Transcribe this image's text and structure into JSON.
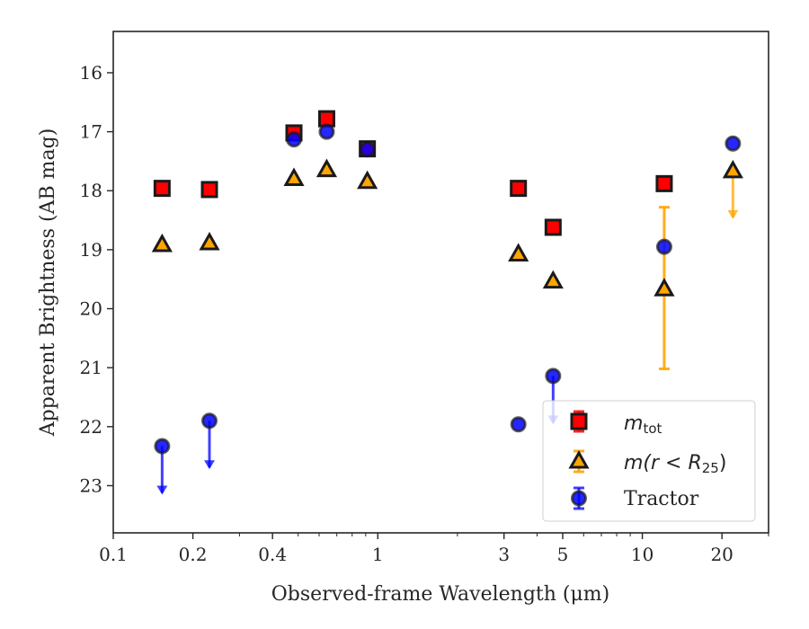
{
  "chart_data": {
    "type": "scatter",
    "title": "",
    "xlabel": "Observed-frame Wavelength (μm)",
    "ylabel": "Apparent Brightness (AB mag)",
    "xscale": "log",
    "xlim": [
      0.1,
      30
    ],
    "ylim": [
      23.8,
      15.3
    ],
    "y_inverted": true,
    "grid": false,
    "legend_position": "lower-right",
    "x_ticks": [
      0.1,
      0.2,
      0.4,
      1,
      3,
      5,
      10,
      20
    ],
    "x_tick_labels": [
      "0.1",
      "0.2",
      "0.4",
      "1",
      "3",
      "5",
      "10",
      "20"
    ],
    "y_ticks": [
      16,
      17,
      18,
      19,
      20,
      21,
      22,
      23
    ],
    "y_tick_labels": [
      "16",
      "17",
      "18",
      "19",
      "20",
      "21",
      "22",
      "23"
    ],
    "legend": {
      "m_tot": {
        "base": "m",
        "sub": "tot"
      },
      "m_r25": {
        "prefix": "m(r < R",
        "sub": "25",
        "suffix": ")"
      },
      "tractor": "Tractor"
    },
    "series": [
      {
        "name": "m_tot",
        "marker": "square",
        "color": "#ff0000",
        "points": [
          {
            "x": 0.153,
            "y": 17.96
          },
          {
            "x": 0.231,
            "y": 17.98
          },
          {
            "x": 0.482,
            "y": 17.02
          },
          {
            "x": 0.641,
            "y": 16.78
          },
          {
            "x": 0.913,
            "y": 17.29
          },
          {
            "x": 3.4,
            "y": 17.96
          },
          {
            "x": 4.6,
            "y": 18.62
          },
          {
            "x": 12.1,
            "y": 17.88
          }
        ]
      },
      {
        "name": "m(r < R25)",
        "marker": "triangle",
        "color": "#ffa500",
        "points": [
          {
            "x": 0.153,
            "y": 18.91
          },
          {
            "x": 0.231,
            "y": 18.88
          },
          {
            "x": 0.482,
            "y": 17.79
          },
          {
            "x": 0.641,
            "y": 17.64
          },
          {
            "x": 0.913,
            "y": 17.84
          },
          {
            "x": 3.4,
            "y": 19.07
          },
          {
            "x": 4.6,
            "y": 19.53
          },
          {
            "x": 12.1,
            "y": 19.66,
            "err_low": 18.28,
            "err_high": 21.02
          },
          {
            "x": 22.0,
            "y": 17.66,
            "upper_limit": true
          }
        ]
      },
      {
        "name": "Tractor",
        "marker": "circle",
        "color": "#0000ff",
        "points": [
          {
            "x": 0.153,
            "y": 22.33,
            "upper_limit": true
          },
          {
            "x": 0.231,
            "y": 21.9,
            "upper_limit": true
          },
          {
            "x": 0.482,
            "y": 17.13
          },
          {
            "x": 0.641,
            "y": 17.0
          },
          {
            "x": 0.913,
            "y": 17.3
          },
          {
            "x": 3.4,
            "y": 21.96
          },
          {
            "x": 4.6,
            "y": 21.14,
            "upper_limit": true
          },
          {
            "x": 12.1,
            "y": 18.95
          },
          {
            "x": 22.0,
            "y": 17.2
          }
        ]
      }
    ]
  }
}
